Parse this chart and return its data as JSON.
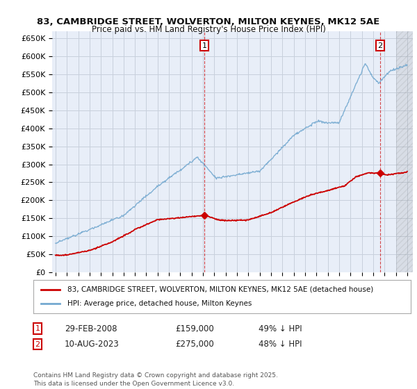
{
  "title": "83, CAMBRIDGE STREET, WOLVERTON, MILTON KEYNES, MK12 5AE",
  "subtitle": "Price paid vs. HM Land Registry's House Price Index (HPI)",
  "ylim": [
    0,
    670000
  ],
  "xlim": [
    1994.7,
    2026.5
  ],
  "yticks": [
    0,
    50000,
    100000,
    150000,
    200000,
    250000,
    300000,
    350000,
    400000,
    450000,
    500000,
    550000,
    600000,
    650000
  ],
  "ytick_labels": [
    "£0",
    "£50K",
    "£100K",
    "£150K",
    "£200K",
    "£250K",
    "£300K",
    "£350K",
    "£400K",
    "£450K",
    "£500K",
    "£550K",
    "£600K",
    "£650K"
  ],
  "xticks": [
    1995,
    1996,
    1997,
    1998,
    1999,
    2000,
    2001,
    2002,
    2003,
    2004,
    2005,
    2006,
    2007,
    2008,
    2009,
    2010,
    2011,
    2012,
    2013,
    2014,
    2015,
    2016,
    2017,
    2018,
    2019,
    2020,
    2021,
    2022,
    2023,
    2024,
    2025,
    2026
  ],
  "legend_line1": "83, CAMBRIDGE STREET, WOLVERTON, MILTON KEYNES, MK12 5AE (detached house)",
  "legend_line2": "HPI: Average price, detached house, Milton Keynes",
  "line1_color": "#cc0000",
  "line2_color": "#74a9d0",
  "marker1_date": 2008.12,
  "marker1_value": 159000,
  "marker1_label": "1",
  "marker2_date": 2023.62,
  "marker2_value": 275000,
  "marker2_label": "2",
  "footer": "Contains HM Land Registry data © Crown copyright and database right 2025.\nThis data is licensed under the Open Government Licence v3.0.",
  "background_color": "#ffffff",
  "grid_color": "#c8d0dc",
  "plot_bg": "#e8eef8"
}
